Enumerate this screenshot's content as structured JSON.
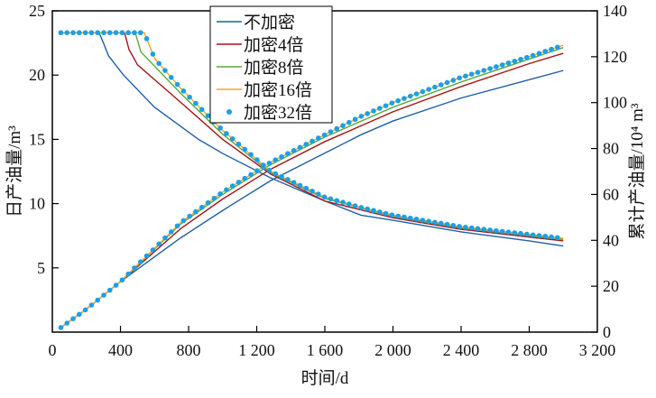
{
  "chart_data": {
    "type": "line",
    "title": "",
    "xlabel": "时间/d",
    "ylabel_left": "日产油量/m³",
    "ylabel_right": "累计产油量/10⁴ m³",
    "xlim": [
      0,
      3200
    ],
    "ylim_left": [
      0,
      25
    ],
    "ylim_right": [
      0,
      140
    ],
    "x_ticks": [
      0,
      400,
      800,
      1200,
      1600,
      2000,
      2400,
      2800,
      3200
    ],
    "x_tick_labels": [
      "0",
      "400",
      "800",
      "1 200",
      "1 600",
      "2 000",
      "2 400",
      "2 800",
      "3 200"
    ],
    "y_left_ticks": [
      5,
      10,
      15,
      20,
      25
    ],
    "y_right_ticks": [
      0,
      20,
      40,
      60,
      80,
      100,
      120,
      140
    ],
    "grid": false,
    "legend_position": "top-center",
    "series": [
      {
        "name": "不加密",
        "style": "line",
        "color": "#1f5fa8",
        "rate": {
          "x": [
            50,
            275,
            300,
            330,
            418,
            600,
            858,
            1000,
            1282,
            1600,
            1812,
            2000,
            2400,
            2800,
            3000
          ],
          "y": [
            23.3,
            23.3,
            22.5,
            21.5,
            20.0,
            17.5,
            15.0,
            13.9,
            12.0,
            10.2,
            9.1,
            8.7,
            7.8,
            7.1,
            6.7
          ]
        },
        "cumulative": {
          "x": [
            50,
            200,
            400,
            752,
            1000,
            1282,
            1600,
            1812,
            2000,
            2400,
            2800,
            3000
          ],
          "y": [
            2,
            10,
            22,
            41,
            53,
            66,
            78,
            86,
            92,
            102,
            110,
            114
          ]
        }
      },
      {
        "name": "加密4倍",
        "style": "line",
        "color": "#a51515",
        "rate": {
          "x": [
            50,
            424,
            450,
            500,
            752,
            1000,
            1282,
            1600,
            2000,
            2400,
            2800,
            3000
          ],
          "y": [
            23.3,
            23.3,
            22.0,
            20.8,
            17.9,
            15.0,
            12.3,
            10.2,
            8.9,
            8.0,
            7.4,
            7.1
          ]
        },
        "cumulative": {
          "x": [
            50,
            200,
            400,
            752,
            1000,
            1282,
            1600,
            2000,
            2400,
            2800,
            3000
          ],
          "y": [
            2,
            10,
            22,
            45,
            58,
            71,
            83,
            96,
            107,
            117,
            121.5
          ]
        }
      },
      {
        "name": "加密8倍",
        "style": "line",
        "color": "#5aa83a",
        "rate": {
          "x": [
            50,
            487,
            520,
            752,
            1000,
            1282,
            1600,
            2000,
            2400,
            2800,
            3000
          ],
          "y": [
            23.3,
            23.3,
            21.8,
            18.6,
            15.4,
            12.4,
            10.4,
            9.0,
            8.1,
            7.5,
            7.2
          ]
        },
        "cumulative": {
          "x": [
            50,
            200,
            400,
            752,
            1000,
            1282,
            1600,
            2000,
            2400,
            2800,
            3000
          ],
          "y": [
            2,
            10,
            22,
            47,
            60,
            73,
            85,
            98,
            109,
            119,
            124
          ]
        }
      },
      {
        "name": "加密16倍",
        "style": "line",
        "color": "#f5a623",
        "rate": {
          "x": [
            50,
            540,
            600,
            752,
            1000,
            1282,
            1600,
            1812,
            2000,
            2400,
            2800,
            3000
          ],
          "y": [
            23.3,
            23.3,
            21.3,
            19.0,
            15.7,
            12.5,
            10.5,
            9.7,
            9.1,
            8.2,
            7.6,
            7.3
          ]
        },
        "cumulative": {
          "x": [
            50,
            200,
            400,
            752,
            1000,
            1282,
            1600,
            1812,
            2000,
            2400,
            2800,
            3000
          ],
          "y": [
            2,
            10,
            22,
            47.6,
            61,
            74,
            86,
            94,
            100,
            111,
            120,
            125
          ]
        }
      },
      {
        "name": "加密32倍",
        "style": "dots",
        "color": "#1aa0e8",
        "rate": {
          "x": [
            50,
            540,
            600,
            752,
            1000,
            1282,
            1600,
            1812,
            2000,
            2400,
            2800,
            3000
          ],
          "y": [
            23.3,
            23.3,
            21.3,
            19.0,
            15.7,
            12.5,
            10.5,
            9.7,
            9.1,
            8.2,
            7.6,
            7.3
          ]
        },
        "cumulative": {
          "x": [
            50,
            200,
            400,
            752,
            1000,
            1282,
            1600,
            1812,
            2000,
            2400,
            2800,
            3000
          ],
          "y": [
            2,
            10,
            22,
            47.6,
            61,
            74,
            86,
            94,
            100,
            111,
            120,
            125
          ]
        }
      }
    ]
  }
}
